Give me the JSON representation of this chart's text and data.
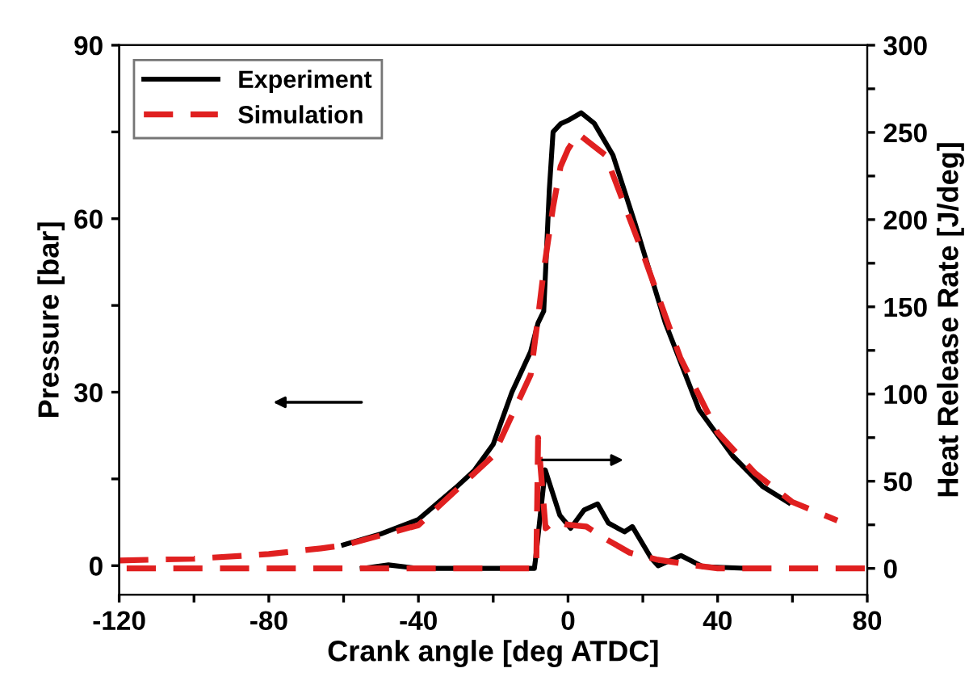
{
  "chart_data": {
    "type": "line",
    "xlabel": "Crank angle [deg ATDC]",
    "ylabel": "Pressure [bar]",
    "y2label": "Heat Release Rate [J/deg]",
    "xlim": [
      -120,
      80
    ],
    "ylim": [
      -5,
      90
    ],
    "y2lim": [
      -15,
      300
    ],
    "xticks": [
      -120,
      {
        "value": -100,
        "label": null
      },
      -80,
      {
        "value": -60,
        "label": null
      },
      -40,
      {
        "value": -20,
        "label": null
      },
      0,
      {
        "value": 20,
        "label": null
      },
      40,
      {
        "value": 60,
        "label": null
      },
      80
    ],
    "yticks": [
      0,
      {
        "value": 15,
        "label": null
      },
      30,
      {
        "value": 45,
        "label": null
      },
      60,
      {
        "value": 75,
        "label": null
      },
      90
    ],
    "y2ticks": [
      0,
      {
        "value": 25,
        "label": null
      },
      50,
      {
        "value": 75,
        "label": null
      },
      100,
      {
        "value": 125,
        "label": null
      },
      150,
      {
        "value": 175,
        "label": null
      },
      200,
      {
        "value": 225,
        "label": null
      },
      250,
      {
        "value": 275,
        "label": null
      },
      300
    ],
    "legend": "top left",
    "grid": false,
    "series": [
      {
        "name": "Experiment",
        "color": "#000000",
        "line_style": "solid",
        "x": [
          -60,
          -50,
          -40,
          -30,
          -25,
          -20,
          -15,
          -10,
          -8,
          -6.5,
          -5,
          -4,
          -2,
          0,
          3.5,
          7,
          12,
          18,
          26,
          35,
          44,
          52,
          59
        ],
        "values": [
          3.6,
          5.5,
          8,
          13.5,
          16.5,
          21,
          30,
          37,
          42,
          44,
          65,
          75,
          76.4,
          77,
          78.3,
          76.5,
          71,
          59,
          42,
          27,
          19,
          13.7,
          10.9
        ]
      },
      {
        "name": "Simulation",
        "color": "#e02020",
        "line_style": "dashed",
        "x": [
          -120,
          -100,
          -80,
          -66,
          -60,
          -40,
          -20,
          -10,
          -8,
          -6.5,
          -4,
          -2,
          0,
          2.7,
          6,
          10,
          20,
          30,
          40,
          50,
          60,
          72
        ],
        "values": [
          0.9,
          1.2,
          2,
          3,
          3.5,
          7,
          19,
          33,
          43,
          51,
          62,
          69,
          72,
          74.7,
          73,
          71,
          54,
          36,
          23,
          16,
          11,
          7.8
        ]
      },
      {
        "color": "#000000",
        "line_style": "solid",
        "axis": "y2",
        "x": [
          -55,
          -48,
          -40,
          -20,
          -9,
          -8.7,
          -6.1,
          -2.2,
          0.7,
          4.3,
          7.9,
          10.8,
          15.1,
          17.2,
          22.2,
          24.1,
          30.2,
          36,
          48
        ],
        "values": [
          0,
          2,
          0,
          0,
          0,
          5,
          56.5,
          30.5,
          23,
          33.5,
          37,
          26,
          21,
          24,
          6,
          1.5,
          7.4,
          1,
          0
        ]
      },
      {
        "color": "#e02020",
        "line_style": "dashed",
        "axis": "y2",
        "x": [
          -118,
          -60,
          -20,
          -8.5,
          -8,
          -6,
          -3.7,
          0,
          4.9,
          9.2,
          16.5,
          24,
          33,
          40,
          60,
          80
        ],
        "values": [
          0,
          0,
          0,
          0,
          75,
          23,
          27,
          25,
          24,
          18,
          9,
          5,
          2,
          0,
          0,
          0
        ]
      }
    ]
  }
}
